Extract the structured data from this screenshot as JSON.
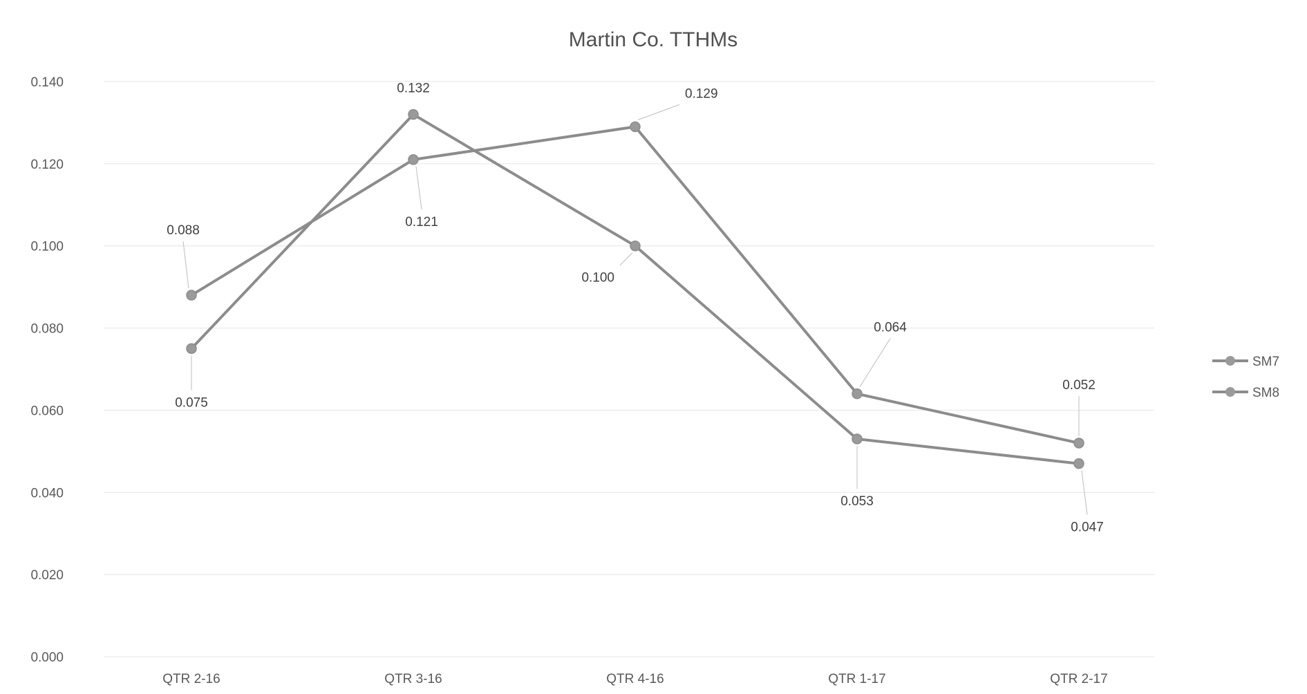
{
  "chart_data": {
    "type": "line",
    "title": "Martin Co. TTHMs",
    "xlabel": "",
    "ylabel": "",
    "categories": [
      "QTR 2-16",
      "QTR 3-16",
      "QTR 4-16",
      "QTR 1-17",
      "QTR 2-17"
    ],
    "series": [
      {
        "name": "SM7",
        "values": [
          0.088,
          0.121,
          0.129,
          0.064,
          0.052
        ],
        "labels": [
          "0.088",
          "0.121",
          "0.129",
          "0.064",
          "0.052"
        ]
      },
      {
        "name": "SM8",
        "values": [
          0.075,
          0.132,
          0.1,
          0.053,
          0.047
        ],
        "labels": [
          "0.075",
          "0.132",
          "0.100",
          "0.053",
          "0.047"
        ]
      }
    ],
    "ylim": [
      0,
      0.14
    ],
    "yticks": [
      "0.000",
      "0.020",
      "0.040",
      "0.060",
      "0.080",
      "0.100",
      "0.120",
      "0.140"
    ],
    "grid": true,
    "legend_position": "right",
    "line_color": "#8c8c8c",
    "marker_color": "#9a9a9a"
  }
}
